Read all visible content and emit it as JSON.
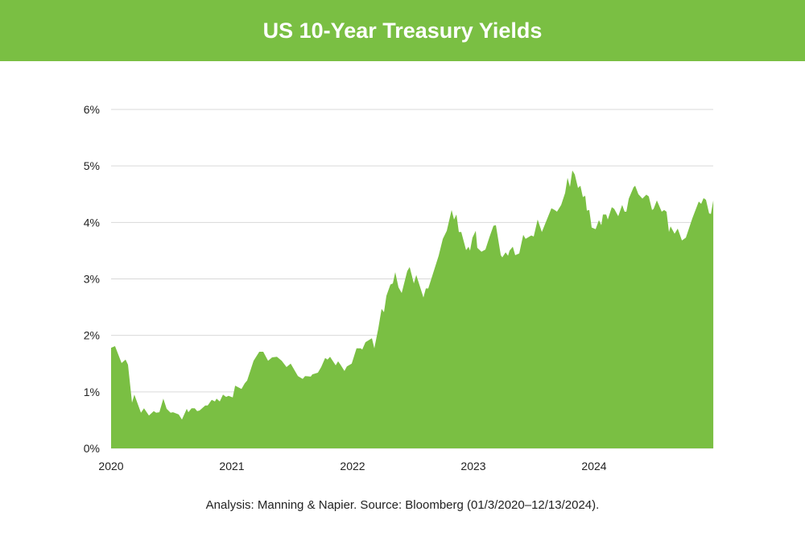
{
  "chart_data": {
    "type": "area",
    "title": "US 10-Year Treasury Yields",
    "xlabel": "",
    "ylabel": "",
    "xlim": [
      2020.0,
      2024.99
    ],
    "ylim": [
      0,
      6
    ],
    "grid": true,
    "legend": "none",
    "color": "#7abf43",
    "y_ticks": [
      {
        "v": 0,
        "label": "0%"
      },
      {
        "v": 1,
        "label": "1%"
      },
      {
        "v": 2,
        "label": "2%"
      },
      {
        "v": 3,
        "label": "3%"
      },
      {
        "v": 4,
        "label": "4%"
      },
      {
        "v": 5,
        "label": "5%"
      },
      {
        "v": 6,
        "label": "6%"
      }
    ],
    "x_ticks": [
      {
        "v": 2020,
        "label": "2020"
      },
      {
        "v": 2021,
        "label": "2021"
      },
      {
        "v": 2022,
        "label": "2022"
      },
      {
        "v": 2023,
        "label": "2023"
      },
      {
        "v": 2024,
        "label": "2024"
      }
    ],
    "points": [
      [
        2020.0,
        1.78
      ],
      [
        2020.033,
        1.81
      ],
      [
        2020.087,
        1.51
      ],
      [
        2020.12,
        1.57
      ],
      [
        2020.14,
        1.48
      ],
      [
        2020.173,
        0.81
      ],
      [
        2020.193,
        0.95
      ],
      [
        2020.247,
        0.63
      ],
      [
        2020.273,
        0.71
      ],
      [
        2020.313,
        0.58
      ],
      [
        2020.353,
        0.66
      ],
      [
        2020.373,
        0.63
      ],
      [
        2020.4,
        0.64
      ],
      [
        2020.433,
        0.88
      ],
      [
        2020.46,
        0.7
      ],
      [
        2020.493,
        0.63
      ],
      [
        2020.513,
        0.64
      ],
      [
        2020.56,
        0.6
      ],
      [
        2020.587,
        0.51
      ],
      [
        2020.627,
        0.7
      ],
      [
        2020.64,
        0.64
      ],
      [
        2020.667,
        0.71
      ],
      [
        2020.693,
        0.71
      ],
      [
        2020.713,
        0.66
      ],
      [
        2020.733,
        0.67
      ],
      [
        2020.78,
        0.76
      ],
      [
        2020.8,
        0.76
      ],
      [
        2020.833,
        0.86
      ],
      [
        2020.86,
        0.83
      ],
      [
        2020.873,
        0.88
      ],
      [
        2020.9,
        0.83
      ],
      [
        2020.927,
        0.95
      ],
      [
        2020.953,
        0.91
      ],
      [
        2020.973,
        0.93
      ],
      [
        2021.007,
        0.9
      ],
      [
        2021.027,
        1.11
      ],
      [
        2021.08,
        1.05
      ],
      [
        2021.107,
        1.15
      ],
      [
        2021.127,
        1.2
      ],
      [
        2021.18,
        1.55
      ],
      [
        2021.227,
        1.71
      ],
      [
        2021.26,
        1.71
      ],
      [
        2021.3,
        1.55
      ],
      [
        2021.333,
        1.61
      ],
      [
        2021.373,
        1.62
      ],
      [
        2021.413,
        1.55
      ],
      [
        2021.453,
        1.44
      ],
      [
        2021.487,
        1.5
      ],
      [
        2021.547,
        1.28
      ],
      [
        2021.587,
        1.23
      ],
      [
        2021.607,
        1.28
      ],
      [
        2021.653,
        1.27
      ],
      [
        2021.667,
        1.31
      ],
      [
        2021.713,
        1.34
      ],
      [
        2021.74,
        1.44
      ],
      [
        2021.773,
        1.6
      ],
      [
        2021.793,
        1.57
      ],
      [
        2021.813,
        1.62
      ],
      [
        2021.86,
        1.47
      ],
      [
        2021.88,
        1.54
      ],
      [
        2021.9,
        1.48
      ],
      [
        2021.933,
        1.37
      ],
      [
        2021.953,
        1.45
      ],
      [
        2021.993,
        1.5
      ],
      [
        2022.033,
        1.77
      ],
      [
        2022.067,
        1.77
      ],
      [
        2022.08,
        1.75
      ],
      [
        2022.107,
        1.88
      ],
      [
        2022.16,
        1.95
      ],
      [
        2022.18,
        1.77
      ],
      [
        2022.213,
        2.12
      ],
      [
        2022.24,
        2.47
      ],
      [
        2022.26,
        2.41
      ],
      [
        2022.28,
        2.7
      ],
      [
        2022.313,
        2.9
      ],
      [
        2022.333,
        2.92
      ],
      [
        2022.353,
        3.12
      ],
      [
        2022.38,
        2.85
      ],
      [
        2022.407,
        2.75
      ],
      [
        2022.453,
        3.14
      ],
      [
        2022.473,
        3.21
      ],
      [
        2022.507,
        2.92
      ],
      [
        2022.527,
        3.07
      ],
      [
        2022.587,
        2.67
      ],
      [
        2022.607,
        2.83
      ],
      [
        2022.627,
        2.83
      ],
      [
        2022.713,
        3.41
      ],
      [
        2022.747,
        3.71
      ],
      [
        2022.78,
        3.85
      ],
      [
        2022.82,
        4.22
      ],
      [
        2022.84,
        4.05
      ],
      [
        2022.86,
        4.14
      ],
      [
        2022.88,
        3.83
      ],
      [
        2022.9,
        3.83
      ],
      [
        2022.94,
        3.51
      ],
      [
        2022.96,
        3.57
      ],
      [
        2022.973,
        3.5
      ],
      [
        2022.993,
        3.73
      ],
      [
        2023.02,
        3.85
      ],
      [
        2023.033,
        3.55
      ],
      [
        2023.067,
        3.48
      ],
      [
        2023.1,
        3.52
      ],
      [
        2023.133,
        3.74
      ],
      [
        2023.167,
        3.94
      ],
      [
        2023.187,
        3.95
      ],
      [
        2023.227,
        3.42
      ],
      [
        2023.24,
        3.38
      ],
      [
        2023.267,
        3.47
      ],
      [
        2023.287,
        3.41
      ],
      [
        2023.3,
        3.5
      ],
      [
        2023.327,
        3.57
      ],
      [
        2023.347,
        3.42
      ],
      [
        2023.38,
        3.45
      ],
      [
        2023.413,
        3.78
      ],
      [
        2023.433,
        3.71
      ],
      [
        2023.48,
        3.77
      ],
      [
        2023.5,
        3.75
      ],
      [
        2023.533,
        4.05
      ],
      [
        2023.567,
        3.83
      ],
      [
        2023.647,
        4.25
      ],
      [
        2023.673,
        4.22
      ],
      [
        2023.693,
        4.19
      ],
      [
        2023.727,
        4.31
      ],
      [
        2023.76,
        4.52
      ],
      [
        2023.78,
        4.79
      ],
      [
        2023.8,
        4.63
      ],
      [
        2023.82,
        4.92
      ],
      [
        2023.84,
        4.85
      ],
      [
        2023.867,
        4.61
      ],
      [
        2023.887,
        4.65
      ],
      [
        2023.907,
        4.45
      ],
      [
        2023.927,
        4.47
      ],
      [
        2023.94,
        4.21
      ],
      [
        2023.96,
        4.22
      ],
      [
        2023.98,
        3.91
      ],
      [
        2024.013,
        3.88
      ],
      [
        2024.04,
        4.04
      ],
      [
        2024.06,
        3.95
      ],
      [
        2024.073,
        4.14
      ],
      [
        2024.1,
        4.14
      ],
      [
        2024.113,
        4.05
      ],
      [
        2024.147,
        4.27
      ],
      [
        2024.167,
        4.24
      ],
      [
        2024.2,
        4.11
      ],
      [
        2024.233,
        4.31
      ],
      [
        2024.253,
        4.19
      ],
      [
        2024.267,
        4.19
      ],
      [
        2024.287,
        4.42
      ],
      [
        2024.327,
        4.62
      ],
      [
        2024.34,
        4.65
      ],
      [
        2024.367,
        4.5
      ],
      [
        2024.4,
        4.42
      ],
      [
        2024.433,
        4.49
      ],
      [
        2024.453,
        4.46
      ],
      [
        2024.48,
        4.22
      ],
      [
        2024.493,
        4.24
      ],
      [
        2024.52,
        4.39
      ],
      [
        2024.56,
        4.19
      ],
      [
        2024.58,
        4.22
      ],
      [
        2024.6,
        4.19
      ],
      [
        2024.62,
        3.83
      ],
      [
        2024.633,
        3.93
      ],
      [
        2024.667,
        3.8
      ],
      [
        2024.693,
        3.89
      ],
      [
        2024.727,
        3.68
      ],
      [
        2024.76,
        3.73
      ],
      [
        2024.813,
        4.07
      ],
      [
        2024.867,
        4.37
      ],
      [
        2024.887,
        4.33
      ],
      [
        2024.907,
        4.43
      ],
      [
        2024.927,
        4.4
      ],
      [
        2024.953,
        4.16
      ],
      [
        2024.967,
        4.15
      ],
      [
        2024.987,
        4.39
      ]
    ],
    "source": "Analysis: Manning & Napier. Source: Bloomberg (01/3/2020–12/13/2024)."
  }
}
